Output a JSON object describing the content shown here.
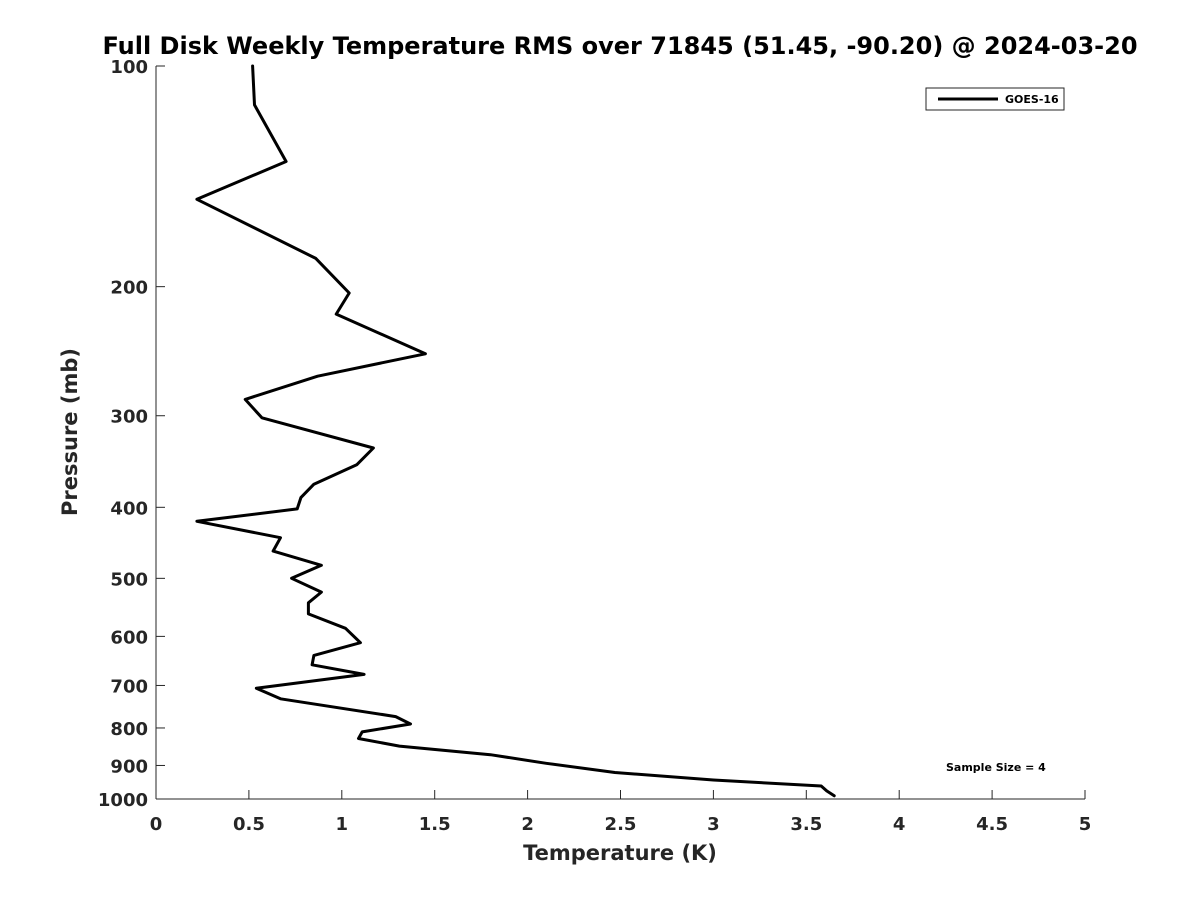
{
  "chart_data": {
    "type": "line",
    "title": "Full Disk Weekly Temperature RMS over 71845 (51.45, -90.20) @ 2024-03-20",
    "xlabel": "Temperature (K)",
    "ylabel": "Pressure (mb)",
    "xlim": [
      0,
      5
    ],
    "ylim": [
      100,
      1000
    ],
    "yscale": "log",
    "y_reversed": true,
    "x_ticks": [
      0,
      0.5,
      1,
      1.5,
      2,
      2.5,
      3,
      3.5,
      4,
      4.5,
      5
    ],
    "x_tick_labels": [
      "0",
      "0.5",
      "1",
      "1.5",
      "2",
      "2.5",
      "3",
      "3.5",
      "4",
      "4.5",
      "5"
    ],
    "y_ticks": [
      100,
      200,
      300,
      400,
      500,
      600,
      700,
      800,
      900,
      1000
    ],
    "y_tick_labels": [
      "100",
      "200",
      "300",
      "400",
      "500",
      "600",
      "700",
      "800",
      "900",
      "1000"
    ],
    "grid": false,
    "legend_position": "top-right",
    "annotation": "Sample Size = 4",
    "series": [
      {
        "name": "GOES-16",
        "color": "#000000",
        "x": [
          0.52,
          0.53,
          0.7,
          0.22,
          0.86,
          1.04,
          0.97,
          1.45,
          0.87,
          0.48,
          0.57,
          1.17,
          1.08,
          0.85,
          0.78,
          0.76,
          0.22,
          0.67,
          0.63,
          0.89,
          0.73,
          0.89,
          0.82,
          0.82,
          1.02,
          1.1,
          0.85,
          0.84,
          1.12,
          0.54,
          0.67,
          1.29,
          1.37,
          1.11,
          1.09,
          1.31,
          1.8,
          2.1,
          2.47,
          3.0,
          3.58,
          3.61,
          3.65
        ],
        "y": [
          100,
          113,
          135,
          152,
          183,
          204,
          218,
          247,
          265,
          285,
          302,
          332,
          350,
          372,
          388,
          402,
          418,
          440,
          459,
          480,
          500,
          522,
          540,
          559,
          585,
          612,
          637,
          656,
          676,
          706,
          730,
          772,
          790,
          810,
          827,
          847,
          870,
          894,
          920,
          942,
          960,
          975,
          990
        ]
      }
    ]
  }
}
